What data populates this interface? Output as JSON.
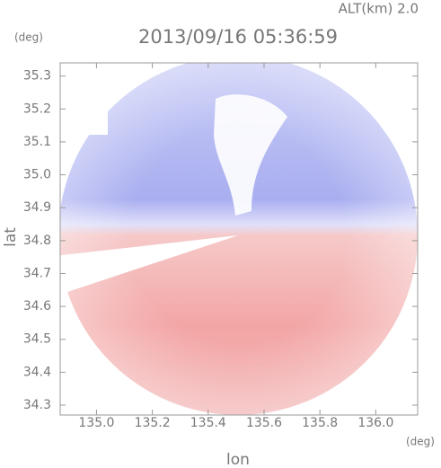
{
  "chart_data": {
    "type": "image",
    "title": "2013/09/16 05:36:59",
    "altitude_label": "ALT(km) 2.0",
    "x_label": "lon",
    "y_label": "lat",
    "x_unit": "(deg)",
    "y_unit": "(deg)",
    "xlim": [
      134.87,
      136.15
    ],
    "ylim": [
      34.27,
      35.34
    ],
    "xticks": [
      {
        "value": 135,
        "label": "135.0"
      },
      135.2,
      135.4,
      135.6,
      135.8,
      {
        "value": 136,
        "label": "136.0"
      }
    ],
    "yticks": [
      34.3,
      34.4,
      34.5,
      34.6,
      34.7,
      34.8,
      34.9,
      {
        "value": 35,
        "label": "35.0"
      },
      35.1,
      35.2,
      35.3
    ]
  }
}
